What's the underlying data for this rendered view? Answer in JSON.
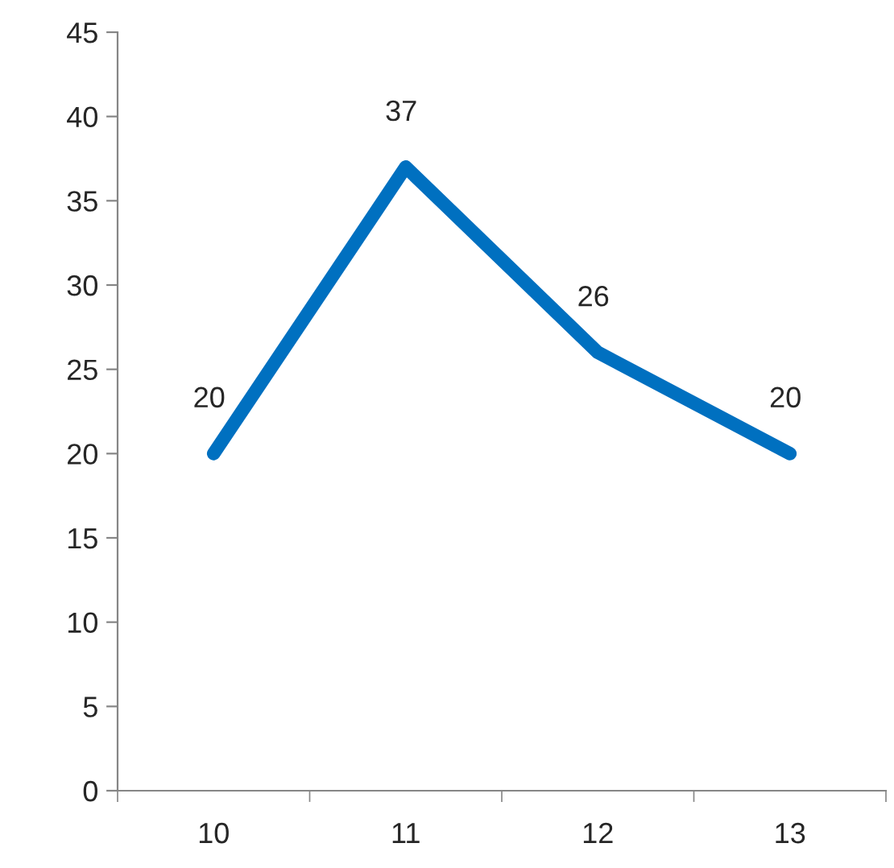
{
  "chart_data": {
    "type": "line",
    "categories": [
      "10",
      "11",
      "12",
      "13"
    ],
    "series": [
      {
        "color": "#0070c0",
        "values": [
          20,
          37,
          26,
          20
        ]
      }
    ],
    "ylim": [
      0,
      45
    ],
    "yticks": [
      0,
      5,
      10,
      15,
      20,
      25,
      30,
      35,
      40,
      45
    ],
    "data_labels": true,
    "grid": false,
    "legend": false,
    "marker": "none",
    "line_style": "solid"
  }
}
